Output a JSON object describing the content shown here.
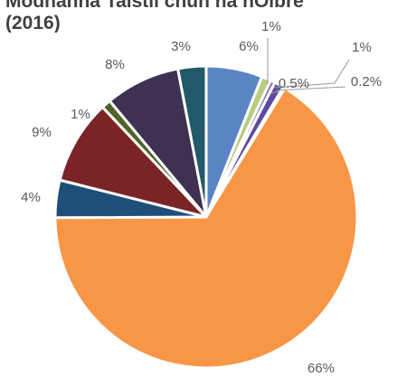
{
  "chart_data": {
    "type": "pie",
    "title_lines": [
      "Modhanna Taistil chun na nOibre",
      "(2016)"
    ],
    "slices": [
      {
        "label": "6%",
        "value": 6,
        "color": "#5b84c4"
      },
      {
        "label": "1%",
        "value": 1,
        "color": "#b9cd7e"
      },
      {
        "label": "0.5%",
        "value": 0.5,
        "color": "#8a74b0"
      },
      {
        "label": "1%",
        "value": 1,
        "color": "#5c49a0"
      },
      {
        "label": "0.2%",
        "value": 0.2,
        "color": "#8fb8d8"
      },
      {
        "label": "66%",
        "value": 66,
        "color": "#f79646"
      },
      {
        "label": "4%",
        "value": 4,
        "color": "#1f4e79"
      },
      {
        "label": "9%",
        "value": 9,
        "color": "#7b2426"
      },
      {
        "label": "1%",
        "value": 1,
        "color": "#4f6228"
      },
      {
        "label": "8%",
        "value": 8,
        "color": "#3f3151"
      },
      {
        "label": "3%",
        "value": 3,
        "color": "#215968"
      }
    ]
  }
}
